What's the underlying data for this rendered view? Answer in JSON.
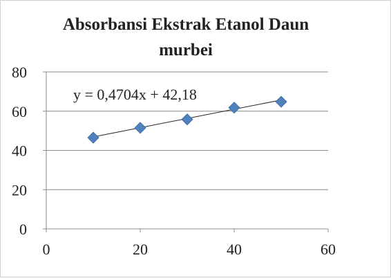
{
  "chart_data": {
    "type": "scatter",
    "title_line1": "Absorbansi Ekstrak Etanol Daun",
    "title_line2": "murbei",
    "xlabel": "",
    "ylabel": "",
    "xlim": [
      0,
      60
    ],
    "ylim": [
      0,
      80
    ],
    "x_ticks": [
      0,
      20,
      40,
      60
    ],
    "y_ticks": [
      0,
      20,
      40,
      60,
      80
    ],
    "x_tick_labels": [
      "0",
      "20",
      "40",
      "60"
    ],
    "y_tick_labels": [
      "0",
      "20",
      "40",
      "60",
      "80"
    ],
    "grid": "horizontal",
    "legend": "none",
    "series": [
      {
        "x": [
          10,
          20,
          30,
          40,
          50
        ],
        "y": [
          46.5,
          51.5,
          55.8,
          61.8,
          64.8
        ],
        "marker": "diamond",
        "color": "#4f81bd"
      }
    ],
    "trendline": {
      "slope": 0.4704,
      "intercept": 42.18,
      "x_range": [
        10,
        50
      ],
      "color": "#222222",
      "equation_label": "y = 0,4704x + 42,18"
    }
  }
}
